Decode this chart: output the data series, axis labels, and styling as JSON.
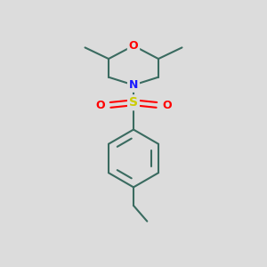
{
  "bg_color": "#dcdcdc",
  "bond_color": "#3a6b60",
  "bond_width": 1.5,
  "atom_colors": {
    "O": "#ff0000",
    "N": "#1a1aff",
    "S": "#cccc00",
    "O_sulfonyl": "#ff0000"
  },
  "font_size_atom": 9,
  "figsize": [
    3.0,
    3.0
  ],
  "dpi": 100
}
